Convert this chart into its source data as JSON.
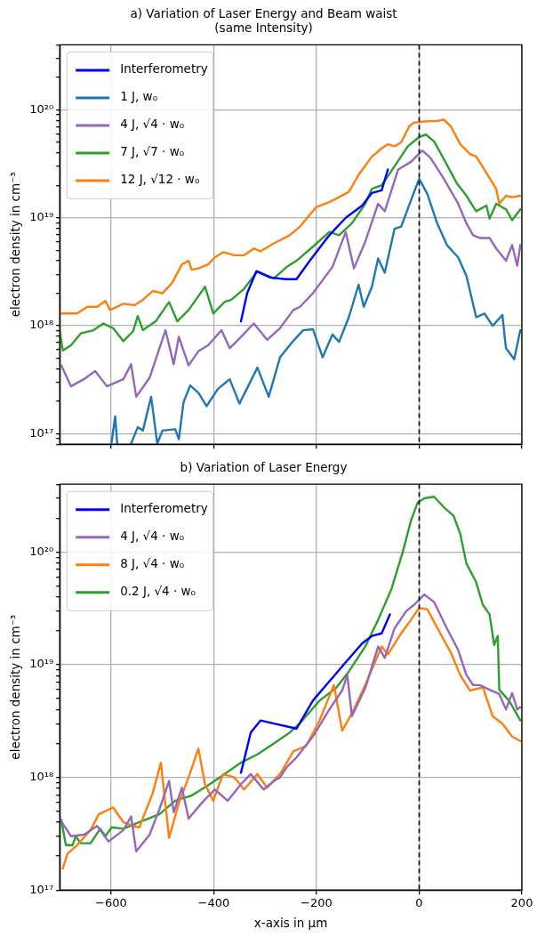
{
  "chart_data": [
    {
      "type": "line",
      "title": "a) Variation of Laser Energy and Beam waist",
      "subtitle": "(same Intensity)",
      "ylabel": "electron density in cm⁻³",
      "xlim": [
        -700,
        200
      ],
      "xticks": [
        {
          "value": -600,
          "label": null
        },
        {
          "value": -400,
          "label": null
        },
        {
          "value": -200,
          "label": null
        },
        {
          "value": 0,
          "label": null
        },
        {
          "value": 200,
          "label": null
        }
      ],
      "ylim": [
        8e+16,
        4e+20
      ],
      "yticks": [
        {
          "value": 8e+16,
          "label": null
        },
        {
          "value": 9e+16,
          "label": null
        },
        {
          "value": 1e+17,
          "label": "10¹⁷"
        },
        {
          "value": 2e+17,
          "label": null
        },
        {
          "value": 3e+17,
          "label": null
        },
        {
          "value": 4e+17,
          "label": null
        },
        {
          "value": 5e+17,
          "label": null
        },
        {
          "value": 6e+17,
          "label": null
        },
        {
          "value": 7e+17,
          "label": null
        },
        {
          "value": 8e+17,
          "label": null
        },
        {
          "value": 9e+17,
          "label": null
        },
        {
          "value": 1e+18,
          "label": "10¹⁸"
        },
        {
          "value": 2e+18,
          "label": null
        },
        {
          "value": 3e+18,
          "label": null
        },
        {
          "value": 4e+18,
          "label": null
        },
        {
          "value": 5e+18,
          "label": null
        },
        {
          "value": 6e+18,
          "label": null
        },
        {
          "value": 7e+18,
          "label": null
        },
        {
          "value": 8e+18,
          "label": null
        },
        {
          "value": 9e+18,
          "label": null
        },
        {
          "value": 1e+19,
          "label": "10¹⁹"
        },
        {
          "value": 2e+19,
          "label": null
        },
        {
          "value": 3e+19,
          "label": null
        },
        {
          "value": 4e+19,
          "label": null
        },
        {
          "value": 5e+19,
          "label": null
        },
        {
          "value": 6e+19,
          "label": null
        },
        {
          "value": 7e+19,
          "label": null
        },
        {
          "value": 8e+19,
          "label": null
        },
        {
          "value": 9e+19,
          "label": null
        },
        {
          "value": 1e+20,
          "label": "10²⁰"
        },
        {
          "value": 2e+20,
          "label": null
        },
        {
          "value": 3e+20,
          "label": null
        },
        {
          "value": 4e+20,
          "label": null
        }
      ],
      "log": "y",
      "grid": true,
      "legend": "top left",
      "tick_labels": "y",
      "ref_lines": [
        {
          "axis": "x",
          "value": 0,
          "color": "#000000",
          "line_style": "dashed"
        }
      ],
      "series": [
        {
          "name": "Interferometry",
          "color": "#0000ff",
          "x": [
            -347,
            -335,
            -317,
            -290,
            -260,
            -239,
            -213,
            -175,
            -143,
            -111,
            -92,
            -73,
            -61
          ],
          "values": [
            1.1e+18,
            2e+18,
            3.2e+18,
            2.8e+18,
            2.7e+18,
            2.7e+18,
            4e+18,
            6.9e+18,
            1e+19,
            1.3e+19,
            1.7e+19,
            1.8e+19,
            2.8e+19
          ]
        },
        {
          "name": "1 J, w₀",
          "color": "#1f77b4",
          "x": [
            -599,
            -592,
            -588,
            -575,
            -561,
            -548,
            -538,
            -522,
            -510,
            -500,
            -475,
            -468,
            -459,
            -446,
            -430,
            -414,
            -392,
            -369,
            -350,
            -315,
            -293,
            -271,
            -249,
            -226,
            -207,
            -188,
            -169,
            -156,
            -137,
            -118,
            -108,
            -92,
            -80,
            -67,
            -48,
            -35,
            -16,
            0,
            16,
            35,
            54,
            76,
            92,
            111,
            127,
            143,
            162,
            169,
            185,
            197
          ],
          "values": [
            8.3e+16,
            1.45e+17,
            8.1e+16,
            null,
            8.1e+16,
            1.15e+17,
            1.07e+17,
            2.2e+17,
            8.1e+16,
            1.07e+17,
            1.1e+17,
            8.9e+16,
            1.95e+17,
            2.8e+17,
            2.4e+17,
            1.8e+17,
            2.6e+17,
            3.2e+17,
            1.9e+17,
            4.1e+17,
            2.2e+17,
            5.1e+17,
            6.9e+17,
            9.1e+17,
            9.3e+17,
            5.1e+17,
            8.3e+17,
            7.1e+17,
            1.2e+18,
            2.4e+18,
            1.5e+18,
            2.3e+18,
            4.2e+18,
            3.1e+18,
            7.9e+18,
            8.3e+18,
            1.45e+19,
            2.3e+19,
            1.66e+19,
            8.9e+18,
            5.6e+18,
            4.3e+18,
            2.9e+18,
            1.2e+18,
            1.3e+18,
            1e+18,
            1.26e+18,
            6.2e+17,
            4.9e+17,
            9.1e+17
          ]
        },
        {
          "name": "4 J, √4 · w₀",
          "color": "#9467bd",
          "x": [
            -697,
            -678,
            -653,
            -631,
            -608,
            -576,
            -561,
            -551,
            -525,
            -494,
            -478,
            -468,
            -449,
            -430,
            -411,
            -385,
            -369,
            -347,
            -322,
            -296,
            -271,
            -245,
            -232,
            -207,
            -169,
            -143,
            -127,
            -105,
            -80,
            -67,
            -41,
            -16,
            6,
            22,
            48,
            76,
            92,
            105,
            118,
            137,
            150,
            169,
            181,
            191,
            197
          ],
          "values": [
            4.3e+17,
            2.75e+17,
            3.2e+17,
            3.8e+17,
            2.75e+17,
            3.2e+17,
            4.4e+17,
            2.2e+17,
            3.3e+17,
            9.1e+17,
            4.4e+17,
            7.9e+17,
            4.3e+17,
            5.8e+17,
            6.6e+17,
            9.1e+17,
            6.2e+17,
            7.9e+17,
            1.05e+18,
            7.4e+17,
            9.5e+17,
            1.4e+18,
            1.5e+18,
            2e+18,
            3.5e+18,
            7.4e+18,
            3.4e+18,
            6e+18,
            1.35e+19,
            1.15e+19,
            2.8e+19,
            3.3e+19,
            4.2e+19,
            3.6e+19,
            2.3e+19,
            1.35e+19,
            8.9e+18,
            6.9e+18,
            6.5e+18,
            6.5e+18,
            5.2e+18,
            4e+18,
            5.6e+18,
            3.6e+18,
            5.6e+18
          ]
        },
        {
          "name": "7 J, √7 · w₀",
          "color": "#2ca02c",
          "x": [
            -700,
            -694,
            -678,
            -659,
            -634,
            -615,
            -596,
            -576,
            -557,
            -548,
            -538,
            -513,
            -487,
            -471,
            -449,
            -417,
            -401,
            -379,
            -366,
            -341,
            -315,
            -283,
            -258,
            -239,
            -207,
            -175,
            -156,
            -131,
            -105,
            -92,
            -73,
            -48,
            -22,
            0,
            13,
            29,
            48,
            73,
            92,
            111,
            131,
            137,
            150,
            169,
            181,
            197
          ],
          "values": [
            9.1e+17,
            5.9e+17,
            6.6e+17,
            8.5e+17,
            9.1e+17,
            1.05e+18,
            9.5e+17,
            7.2e+17,
            8.9e+17,
            1.23e+18,
            9.1e+17,
            1.1e+18,
            1.66e+18,
            1.1e+18,
            1.4e+18,
            2.3e+18,
            1.3e+18,
            1.66e+18,
            1.74e+18,
            2.2e+18,
            3.2e+18,
            2.75e+18,
            3.5e+18,
            4e+18,
            5.4e+18,
            7.4e+18,
            6.9e+18,
            8.9e+18,
            1.35e+19,
            1.86e+19,
            2e+19,
            3e+19,
            4.6e+19,
            5.6e+19,
            5.9e+19,
            5.1e+19,
            3.5e+19,
            2.1e+19,
            1.6e+19,
            1.15e+19,
            1.3e+19,
            9.8e+18,
            1.35e+19,
            1.2e+19,
            9.5e+18,
            1.2e+19
          ]
        },
        {
          "name": "12 J, √12 · w₀",
          "color": "#ff7f0e",
          "x": [
            -697,
            -666,
            -646,
            -627,
            -611,
            -602,
            -576,
            -554,
            -538,
            -519,
            -500,
            -481,
            -462,
            -449,
            -443,
            -430,
            -411,
            -398,
            -382,
            -360,
            -341,
            -322,
            -309,
            -283,
            -252,
            -232,
            -200,
            -175,
            -162,
            -137,
            -118,
            -92,
            -73,
            -61,
            -48,
            -35,
            -19,
            -10,
            10,
            35,
            48,
            61,
            80,
            99,
            111,
            131,
            150,
            156,
            169,
            181,
            197
          ],
          "values": [
            1.3e+18,
            1.3e+18,
            1.5e+18,
            1.5e+18,
            1.7e+18,
            1.4e+18,
            1.6e+18,
            1.55e+18,
            1.74e+18,
            2.1e+18,
            2e+18,
            2.5e+18,
            3.7e+18,
            4e+18,
            3.3e+18,
            3.4e+18,
            3.7e+18,
            4.3e+18,
            4.8e+18,
            4.5e+18,
            4.5e+18,
            5.2e+18,
            4.9e+18,
            5.8e+18,
            6.9e+18,
            8.3e+18,
            1.26e+19,
            1.4e+19,
            1.5e+19,
            1.74e+19,
            2.5e+19,
            3.7e+19,
            4.4e+19,
            4.8e+19,
            4.6e+19,
            5e+19,
            7.1e+19,
            7.6e+19,
            7.8e+19,
            7.9e+19,
            8.1e+19,
            7.1e+19,
            4.8e+19,
            3.9e+19,
            3.7e+19,
            2.6e+19,
            1.86e+19,
            1.35e+19,
            1.6e+19,
            1.55e+19,
            1.6e+19
          ]
        }
      ]
    },
    {
      "type": "line",
      "title": "b) Variation of Laser Energy",
      "xlabel": "x-axis in µm",
      "ylabel": "electron density in cm⁻³",
      "xlim": [
        -700,
        200
      ],
      "xticks": [
        {
          "value": -600,
          "label": "−600"
        },
        {
          "value": -400,
          "label": "−400"
        },
        {
          "value": -200,
          "label": "−200"
        },
        0,
        200
      ],
      "ylim": [
        1e+17,
        4e+20
      ],
      "yticks": [
        {
          "value": 1e+17,
          "label": "10¹⁷"
        },
        {
          "value": 2e+17,
          "label": null
        },
        {
          "value": 3e+17,
          "label": null
        },
        {
          "value": 4e+17,
          "label": null
        },
        {
          "value": 5e+17,
          "label": null
        },
        {
          "value": 6e+17,
          "label": null
        },
        {
          "value": 7e+17,
          "label": null
        },
        {
          "value": 8e+17,
          "label": null
        },
        {
          "value": 9e+17,
          "label": null
        },
        {
          "value": 1e+18,
          "label": "10¹⁸"
        },
        {
          "value": 2e+18,
          "label": null
        },
        {
          "value": 3e+18,
          "label": null
        },
        {
          "value": 4e+18,
          "label": null
        },
        {
          "value": 5e+18,
          "label": null
        },
        {
          "value": 6e+18,
          "label": null
        },
        {
          "value": 7e+18,
          "label": null
        },
        {
          "value": 8e+18,
          "label": null
        },
        {
          "value": 9e+18,
          "label": null
        },
        {
          "value": 1e+19,
          "label": "10¹⁹"
        },
        {
          "value": 2e+19,
          "label": null
        },
        {
          "value": 3e+19,
          "label": null
        },
        {
          "value": 4e+19,
          "label": null
        },
        {
          "value": 5e+19,
          "label": null
        },
        {
          "value": 6e+19,
          "label": null
        },
        {
          "value": 7e+19,
          "label": null
        },
        {
          "value": 8e+19,
          "label": null
        },
        {
          "value": 9e+19,
          "label": null
        },
        {
          "value": 1e+20,
          "label": "10²⁰"
        },
        {
          "value": 2e+20,
          "label": null
        },
        {
          "value": 3e+20,
          "label": null
        },
        {
          "value": 4e+20,
          "label": null
        }
      ],
      "log": "y",
      "grid": true,
      "legend": "top left",
      "ref_lines": [
        {
          "axis": "x",
          "value": 0,
          "color": "#000000",
          "line_style": "dashed"
        }
      ],
      "series": [
        {
          "name": "Interferometry",
          "color": "#0000ff",
          "x": [
            -347,
            -328,
            -309,
            -283,
            -245,
            -239,
            -207,
            -175,
            -143,
            -111,
            -92,
            -73,
            -57
          ],
          "values": [
            1.1e+18,
            2.5e+18,
            3.2e+18,
            3e+18,
            2.75e+18,
            2.7e+18,
            4.8e+18,
            7.1e+18,
            1.05e+19,
            1.55e+19,
            1.8e+19,
            1.9e+19,
            2.8e+19
          ]
        },
        {
          "name": "4 J, √4 · w₀",
          "color": "#9467bd",
          "x": [
            -700,
            -691,
            -678,
            -653,
            -627,
            -605,
            -576,
            -561,
            -551,
            -525,
            -506,
            -487,
            -478,
            -462,
            -449,
            -424,
            -398,
            -373,
            -347,
            -328,
            -303,
            -283,
            -271,
            -258,
            -239,
            -207,
            -175,
            -150,
            -140,
            -131,
            -105,
            -80,
            -67,
            -48,
            -25,
            -10,
            10,
            29,
            54,
            76,
            92,
            105,
            118,
            137,
            156,
            169,
            181,
            191,
            197
          ],
          "values": [
            4.3e+17,
            3.7e+17,
            3e+17,
            3.1e+17,
            3.7e+17,
            2.7e+17,
            3.4e+17,
            4.5e+17,
            2.2e+17,
            3.1e+17,
            5.2e+17,
            9.3e+17,
            4.9e+17,
            8.1e+17,
            4.3e+17,
            5.9e+17,
            7.8e+17,
            6.2e+17,
            8.7e+17,
            1.07e+18,
            7.8e+17,
            9.3e+17,
            1e+18,
            1.23e+18,
            1.5e+18,
            2.3e+18,
            4e+18,
            5.9e+18,
            8.1e+18,
            3.5e+18,
            6.2e+18,
            1.45e+19,
            1.15e+19,
            2.1e+19,
            3e+19,
            3.4e+19,
            4.2e+19,
            3.6e+19,
            2.1e+19,
            1.35e+19,
            8.1e+18,
            6.6e+18,
            6.6e+18,
            6e+18,
            5.5e+18,
            4e+18,
            5.6e+18,
            4e+18,
            4.2e+18
          ]
        },
        {
          "name": "8 J, √4 · w₀",
          "color": "#ff7f0e",
          "x": [
            -694,
            -685,
            -666,
            -640,
            -624,
            -596,
            -576,
            -557,
            -545,
            -519,
            -503,
            -487,
            -468,
            -449,
            -430,
            -417,
            -401,
            -382,
            -360,
            -341,
            -315,
            -296,
            -271,
            -245,
            -220,
            -194,
            -166,
            -150,
            -131,
            -105,
            -73,
            -61,
            -35,
            -16,
            0,
            16,
            41,
            61,
            80,
            99,
            124,
            143,
            162,
            181,
            197
          ],
          "values": [
            1.55e+17,
            2.1e+17,
            2.5e+17,
            3.4e+17,
            4.7e+17,
            5.4e+17,
            4e+17,
            3.7e+17,
            3.6e+17,
            7.2e+17,
            1.35e+18,
            2.9e+17,
            5.9e+17,
            1e+18,
            1.8e+18,
            8.7e+17,
            6.2e+17,
            1.07e+18,
            1e+18,
            7.8e+17,
            1.07e+18,
            8.1e+17,
            1.07e+18,
            1.7e+18,
            1.9e+18,
            3.2e+18,
            6.6e+18,
            2.6e+18,
            3.7e+18,
            6.6e+18,
            1.45e+19,
            1.23e+19,
            1.9e+19,
            2.5e+19,
            3.2e+19,
            3.1e+19,
            1.9e+19,
            1.3e+19,
            8.1e+18,
            5.9e+18,
            6.3e+18,
            3.5e+18,
            3e+18,
            2.3e+18,
            2.1e+18
          ]
        },
        {
          "name": "0.2 J, √4 · w₀",
          "color": "#2ca02c",
          "x": [
            -697,
            -688,
            -675,
            -669,
            -659,
            -640,
            -621,
            -611,
            -599,
            -576,
            -545,
            -506,
            -475,
            -443,
            -411,
            -379,
            -347,
            -315,
            -283,
            -252,
            -233,
            -194,
            -162,
            -137,
            -105,
            -80,
            -54,
            -32,
            -16,
            -3,
            10,
            29,
            48,
            67,
            80,
            92,
            111,
            124,
            137,
            146,
            153,
            156,
            175,
            197
          ],
          "values": [
            4.2e+17,
            2.5e+17,
            2.5e+17,
            3e+17,
            2.6e+17,
            2.6e+17,
            3.5e+17,
            3e+17,
            3.6e+17,
            3.5e+17,
            4e+17,
            4.7e+17,
            6.2e+17,
            6.9e+17,
            8.5e+17,
            1.07e+18,
            1.35e+18,
            1.6e+18,
            2e+18,
            2.5e+18,
            3e+18,
            4.8e+18,
            6.2e+18,
            8.7e+18,
            1.45e+19,
            2.5e+19,
            4.7e+19,
            1e+20,
            1.9e+20,
            2.75e+20,
            3e+20,
            3.1e+20,
            2.5e+20,
            2.1e+20,
            1.45e+20,
            7.9e+19,
            5.4e+19,
            3.4e+19,
            2.8e+19,
            1.5e+19,
            1.8e+19,
            6e+18,
            4.8e+18,
            3.2e+18
          ]
        }
      ]
    }
  ]
}
